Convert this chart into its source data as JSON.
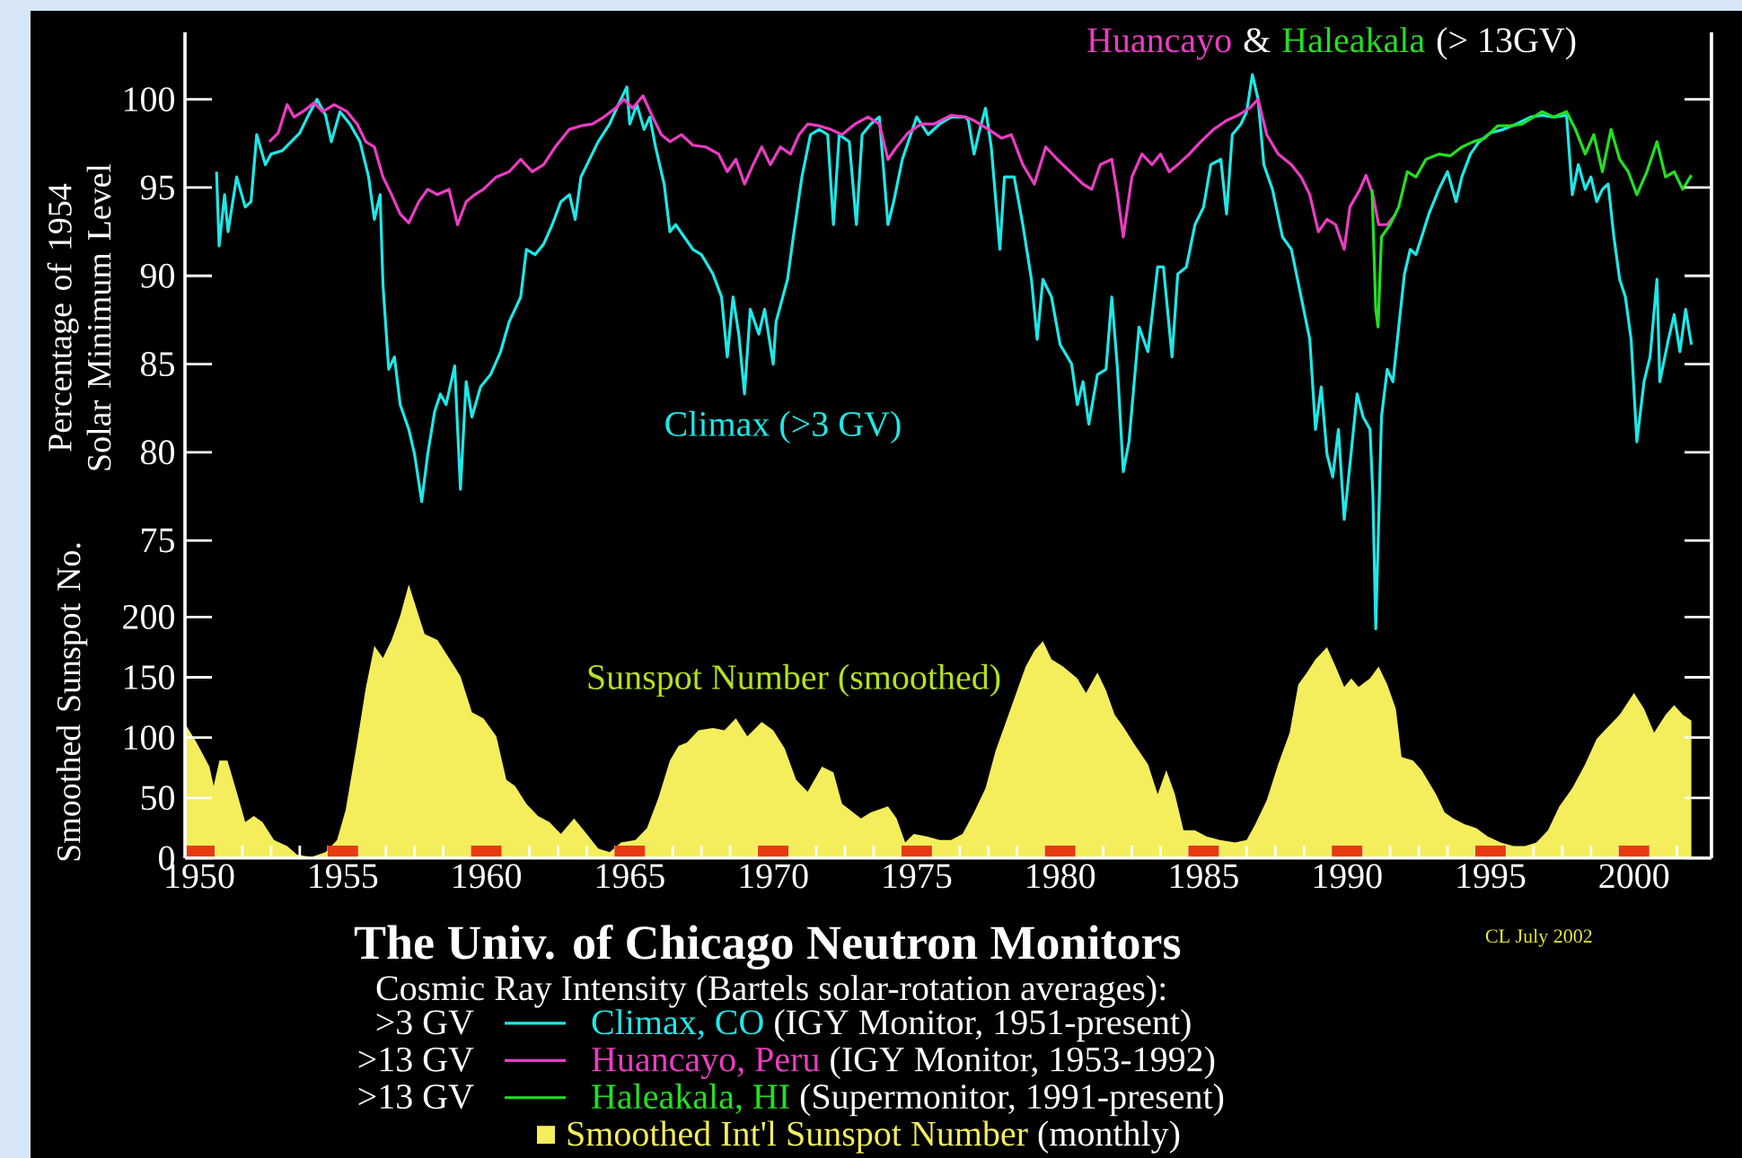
{
  "chart_data": [
    {
      "type": "line",
      "title": "The Univ. of Chicago Neutron Monitors",
      "ylabel": "Percentage of 1954 Solar Minimum Level",
      "legend_title": "Cosmic Ray Intensity (Bartels solar-rotation averages):",
      "legend": "bottom",
      "tick_labels": "y",
      "xlim": [
        1949.5,
        2002.7
      ],
      "ylim": [
        57,
        103.8
      ],
      "yticks": [
        75,
        80,
        85,
        90,
        95,
        100
      ],
      "series": [
        {
          "name": "Climax, CO",
          "color": "#1ee8e8",
          "x": [
            1950.6,
            1950.69,
            1950.88,
            1951.0,
            1951.3,
            1951.6,
            1951.8,
            1952.0,
            1952.3,
            1952.5,
            1952.9,
            1953.2,
            1953.5,
            1953.8,
            1954.1,
            1954.4,
            1954.6,
            1954.9,
            1955.25,
            1955.6,
            1955.9,
            1956.1,
            1956.3,
            1956.4,
            1956.6,
            1956.8,
            1957.0,
            1957.3,
            1957.5,
            1957.75,
            1957.96,
            1958.2,
            1958.4,
            1958.6,
            1958.9,
            1959.1,
            1959.3,
            1959.5,
            1959.8,
            1960.15,
            1960.5,
            1960.8,
            1961.2,
            1961.4,
            1961.7,
            1962.0,
            1962.3,
            1962.6,
            1962.9,
            1963.1,
            1963.3,
            1963.6,
            1963.9,
            1964.3,
            1964.6,
            1964.9,
            1965.0,
            1965.25,
            1965.5,
            1965.7,
            1965.9,
            1966.2,
            1966.4,
            1966.6,
            1966.9,
            1967.2,
            1967.5,
            1967.9,
            1968.2,
            1968.4,
            1968.6,
            1968.8,
            1969.0,
            1969.2,
            1969.5,
            1969.7,
            1970.0,
            1970.1,
            1970.5,
            1970.7,
            1971.0,
            1971.3,
            1971.6,
            1971.9,
            1972.1,
            1972.3,
            1972.65,
            1972.9,
            1973.1,
            1973.4,
            1973.7,
            1974.0,
            1974.2,
            1974.5,
            1975.0,
            1975.4,
            1975.8,
            1976.2,
            1976.7,
            1976.8,
            1977.0,
            1977.2,
            1977.4,
            1977.6,
            1977.9,
            1978.06,
            1978.4,
            1978.7,
            1979.0,
            1979.2,
            1979.4,
            1979.7,
            1980.0,
            1980.4,
            1980.6,
            1980.8,
            1981.0,
            1981.3,
            1981.6,
            1981.8,
            1982.0,
            1982.2,
            1982.4,
            1982.75,
            1983.06,
            1983.4,
            1983.6,
            1983.9,
            1984.1,
            1984.4,
            1984.7,
            1985.0,
            1985.25,
            1985.6,
            1985.8,
            1986.0,
            1986.3,
            1986.5,
            1986.7,
            1986.9,
            1987.1,
            1987.4,
            1987.75,
            1988.06,
            1988.4,
            1988.7,
            1988.9,
            1989.1,
            1989.3,
            1989.5,
            1989.7,
            1989.9,
            1990.1,
            1990.35,
            1990.56,
            1990.8,
            1990.9,
            1991.0,
            1991.2,
            1991.4,
            1991.6,
            1991.8,
            1992.0,
            1992.2,
            1992.4,
            1992.6,
            1992.85,
            1993.2,
            1993.5,
            1993.8,
            1994.0,
            1994.3,
            1994.6,
            1995.0,
            1995.45,
            1995.9,
            1996.4,
            1996.8,
            1997.2,
            1997.65,
            1997.85,
            1998.06,
            1998.3,
            1998.5,
            1998.7,
            1998.9,
            1999.1,
            1999.3,
            1999.5,
            1999.7,
            1999.9,
            2000.1,
            2000.35,
            2000.56,
            2000.8,
            2000.9,
            2001.2,
            2001.4,
            2001.6,
            2001.8,
            2002.0
          ],
          "values": [
            95.9,
            91.7,
            94.6,
            92.5,
            95.6,
            93.9,
            94.2,
            98.0,
            96.3,
            96.9,
            97.1,
            97.6,
            98.1,
            99.1,
            100.0,
            99.1,
            97.6,
            99.3,
            98.6,
            97.6,
            95.6,
            93.2,
            94.6,
            89.5,
            84.7,
            85.4,
            82.7,
            81.3,
            79.9,
            77.2,
            79.9,
            82.3,
            83.3,
            82.7,
            84.9,
            77.9,
            84.0,
            82.0,
            83.7,
            84.4,
            85.7,
            87.4,
            88.8,
            91.5,
            91.2,
            91.8,
            92.9,
            94.2,
            94.6,
            93.2,
            95.6,
            96.6,
            97.6,
            98.6,
            99.7,
            100.7,
            98.6,
            99.7,
            98.3,
            99.0,
            97.3,
            95.2,
            92.5,
            92.9,
            92.2,
            91.5,
            91.2,
            90.1,
            88.8,
            85.4,
            88.8,
            86.7,
            83.3,
            88.1,
            86.7,
            88.1,
            85.0,
            87.4,
            89.8,
            92.2,
            95.6,
            98.0,
            98.3,
            98.0,
            92.9,
            98.0,
            97.6,
            92.9,
            98.0,
            98.6,
            99.0,
            92.9,
            94.2,
            96.6,
            99.0,
            98.0,
            98.6,
            99.0,
            99.0,
            98.8,
            96.9,
            98.3,
            99.5,
            97.3,
            91.5,
            95.6,
            95.6,
            92.9,
            89.8,
            86.4,
            89.8,
            88.8,
            86.1,
            85.0,
            82.7,
            84.0,
            81.6,
            84.4,
            84.7,
            88.8,
            84.7,
            78.9,
            80.6,
            87.1,
            85.7,
            90.5,
            90.5,
            85.4,
            90.1,
            90.5,
            92.9,
            93.9,
            96.3,
            96.6,
            93.5,
            98.0,
            98.6,
            99.3,
            101.4,
            100.0,
            96.3,
            94.9,
            92.2,
            91.5,
            88.8,
            86.4,
            81.3,
            83.7,
            79.9,
            78.6,
            81.3,
            76.2,
            79.3,
            83.3,
            82.0,
            81.3,
            77.6,
            70.0,
            82.0,
            84.7,
            84.0,
            87.1,
            90.1,
            91.5,
            91.2,
            92.2,
            93.5,
            94.9,
            95.9,
            94.2,
            95.6,
            96.9,
            97.6,
            98.1,
            98.3,
            98.6,
            99.0,
            99.1,
            99.0,
            99.1,
            94.6,
            96.3,
            94.9,
            95.6,
            94.2,
            94.9,
            95.2,
            92.2,
            89.8,
            88.8,
            86.4,
            80.6,
            84.0,
            85.4,
            89.8,
            84.0,
            86.4,
            87.8,
            85.7,
            88.1,
            86.1
          ]
        },
        {
          "name": "Huancayo, Peru",
          "color": "#ec3cc4",
          "x": [
            1952.44,
            1952.75,
            1953.06,
            1953.3,
            1953.6,
            1954.0,
            1954.3,
            1954.7,
            1955.15,
            1955.5,
            1955.8,
            1956.1,
            1956.4,
            1956.7,
            1957.0,
            1957.3,
            1957.65,
            1957.96,
            1958.3,
            1958.7,
            1959.0,
            1959.3,
            1959.6,
            1959.9,
            1960.35,
            1960.8,
            1961.2,
            1961.6,
            1962.0,
            1962.4,
            1962.9,
            1963.3,
            1963.7,
            1964.1,
            1964.5,
            1964.8,
            1965.1,
            1965.46,
            1965.8,
            1966.1,
            1966.4,
            1966.8,
            1967.2,
            1967.65,
            1968.1,
            1968.4,
            1968.7,
            1969.0,
            1969.3,
            1969.6,
            1969.9,
            1970.25,
            1970.6,
            1970.9,
            1971.2,
            1971.6,
            1972.0,
            1972.4,
            1972.85,
            1973.3,
            1973.7,
            1974.0,
            1974.3,
            1974.7,
            1975.15,
            1975.6,
            1976.2,
            1976.7,
            1977.0,
            1977.5,
            1977.96,
            1978.3,
            1978.7,
            1979.1,
            1979.5,
            1979.9,
            1980.35,
            1980.8,
            1981.1,
            1981.4,
            1981.8,
            1982.0,
            1982.2,
            1982.5,
            1982.85,
            1983.2,
            1983.5,
            1983.8,
            1984.1,
            1984.5,
            1984.9,
            1985.35,
            1985.8,
            1986.2,
            1986.6,
            1986.9,
            1987.2,
            1987.6,
            1988.06,
            1988.4,
            1988.7,
            1989.0,
            1989.3,
            1989.6,
            1989.9,
            1990.1,
            1990.45,
            1990.66,
            1990.9,
            1991.1,
            1991.4,
            1991.7
          ],
          "values": [
            97.6,
            98.1,
            99.7,
            99.0,
            99.3,
            99.8,
            99.3,
            99.7,
            99.3,
            98.6,
            97.6,
            97.3,
            95.6,
            94.6,
            93.5,
            93.0,
            94.2,
            94.9,
            94.6,
            94.9,
            92.9,
            94.2,
            94.6,
            94.9,
            95.6,
            95.9,
            96.6,
            95.9,
            96.3,
            97.3,
            98.3,
            98.5,
            98.6,
            99.0,
            99.5,
            100.0,
            99.5,
            100.2,
            99.0,
            98.0,
            97.6,
            98.0,
            97.4,
            97.3,
            96.9,
            95.9,
            96.6,
            95.2,
            96.3,
            97.3,
            96.3,
            97.3,
            96.9,
            98.0,
            98.6,
            98.5,
            98.3,
            98.0,
            98.6,
            99.0,
            98.6,
            96.6,
            97.3,
            98.1,
            98.6,
            98.6,
            99.1,
            99.0,
            98.8,
            98.3,
            97.8,
            98.0,
            96.3,
            95.2,
            97.3,
            96.6,
            95.9,
            95.2,
            94.9,
            96.3,
            96.6,
            94.6,
            92.2,
            95.6,
            96.9,
            96.3,
            96.9,
            95.9,
            96.3,
            96.9,
            97.6,
            98.3,
            98.8,
            99.1,
            99.5,
            100.0,
            98.0,
            96.9,
            96.3,
            95.6,
            94.6,
            92.5,
            93.2,
            92.9,
            91.5,
            93.9,
            94.9,
            95.7,
            94.6,
            92.9,
            92.9,
            93.5
          ]
        },
        {
          "name": "Haleakala, HI",
          "color": "#22e022",
          "x": [
            1990.87,
            1991.0,
            1991.08,
            1991.2,
            1991.5,
            1991.8,
            1992.1,
            1992.4,
            1992.75,
            1993.2,
            1993.6,
            1994.0,
            1994.4,
            1994.8,
            1995.25,
            1995.7,
            1996.1,
            1996.5,
            1996.8,
            1997.2,
            1997.65,
            1997.96,
            1998.3,
            1998.6,
            1998.9,
            1999.2,
            1999.5,
            1999.8,
            2000.1,
            2000.45,
            2000.8,
            2001.1,
            2001.4,
            2001.7,
            2002.0
          ],
          "values": [
            94.9,
            88.1,
            87.1,
            92.2,
            92.9,
            93.9,
            95.9,
            95.6,
            96.6,
            96.9,
            96.8,
            97.3,
            97.6,
            97.8,
            98.5,
            98.5,
            98.6,
            99.0,
            99.3,
            99.0,
            99.3,
            98.3,
            96.9,
            98.0,
            95.9,
            98.3,
            96.6,
            95.9,
            94.6,
            95.9,
            97.6,
            95.6,
            95.9,
            94.9,
            95.7
          ]
        }
      ],
      "annotations": [
        "Climax (>3 GV)",
        "Huancayo",
        "&",
        "Haleakala",
        "(> 13GV)",
        ">3 GV",
        ">13 GV",
        ">13 GV",
        "(IGY Monitor, 1951-present)",
        "(IGY Monitor, 1953-1992)",
        "(Supermonitor, 1991-present)",
        "CL July 2002"
      ]
    },
    {
      "type": "area",
      "ylabel": "Smoothed Sunspot No.",
      "legend": "bottom",
      "xlim": [
        1949.5,
        2002.7
      ],
      "ylim": [
        0,
        685
      ],
      "yticks": [
        0,
        50,
        100,
        150,
        200
      ],
      "xticks": [
        1950,
        {
          "value": 1950.5,
          "label": null
        },
        {
          "value": 1951.5,
          "label": null
        },
        {
          "value": 1952.5,
          "label": null
        },
        {
          "value": 1953.5,
          "label": null
        },
        {
          "value": 1954.5,
          "label": null
        },
        1955,
        {
          "value": 1955.5,
          "label": null
        },
        {
          "value": 1956.5,
          "label": null
        },
        {
          "value": 1957.5,
          "label": null
        },
        {
          "value": 1958.5,
          "label": null
        },
        {
          "value": 1959.5,
          "label": null
        },
        1960,
        {
          "value": 1960.5,
          "label": null
        },
        {
          "value": 1961.5,
          "label": null
        },
        {
          "value": 1962.5,
          "label": null
        },
        {
          "value": 1963.5,
          "label": null
        },
        {
          "value": 1964.5,
          "label": null
        },
        1965,
        {
          "value": 1965.5,
          "label": null
        },
        {
          "value": 1966.5,
          "label": null
        },
        {
          "value": 1967.5,
          "label": null
        },
        {
          "value": 1968.5,
          "label": null
        },
        {
          "value": 1969.5,
          "label": null
        },
        1970,
        {
          "value": 1970.5,
          "label": null
        },
        {
          "value": 1971.5,
          "label": null
        },
        {
          "value": 1972.5,
          "label": null
        },
        {
          "value": 1973.5,
          "label": null
        },
        {
          "value": 1974.5,
          "label": null
        },
        1975,
        {
          "value": 1975.5,
          "label": null
        },
        {
          "value": 1976.5,
          "label": null
        },
        {
          "value": 1977.5,
          "label": null
        },
        {
          "value": 1978.5,
          "label": null
        },
        {
          "value": 1979.5,
          "label": null
        },
        1980,
        {
          "value": 1980.5,
          "label": null
        },
        {
          "value": 1981.5,
          "label": null
        },
        {
          "value": 1982.5,
          "label": null
        },
        {
          "value": 1983.5,
          "label": null
        },
        {
          "value": 1984.5,
          "label": null
        },
        1985,
        {
          "value": 1985.5,
          "label": null
        },
        {
          "value": 1986.5,
          "label": null
        },
        {
          "value": 1987.5,
          "label": null
        },
        {
          "value": 1988.5,
          "label": null
        },
        {
          "value": 1989.5,
          "label": null
        },
        1990,
        {
          "value": 1990.5,
          "label": null
        },
        {
          "value": 1991.5,
          "label": null
        },
        {
          "value": 1992.5,
          "label": null
        },
        {
          "value": 1993.5,
          "label": null
        },
        {
          "value": 1994.5,
          "label": null
        },
        1995,
        {
          "value": 1995.5,
          "label": null
        },
        {
          "value": 1996.5,
          "label": null
        },
        {
          "value": 1997.5,
          "label": null
        },
        {
          "value": 1998.5,
          "label": null
        },
        {
          "value": 1999.5,
          "label": null
        },
        2000,
        {
          "value": 2000.5,
          "label": null
        },
        {
          "value": 2001.5,
          "label": null
        }
      ],
      "series": [
        {
          "name": "Smoothed Int'l Sunspot Number",
          "color": "#f4ee5c",
          "x": [
            1949.52,
            1949.9,
            1950.35,
            1950.5,
            1950.7,
            1950.98,
            1951.3,
            1951.6,
            1951.9,
            1952.2,
            1952.6,
            1953.06,
            1953.4,
            1953.9,
            1954.4,
            1954.8,
            1955.1,
            1955.5,
            1955.8,
            1956.1,
            1956.4,
            1956.7,
            1957.0,
            1957.3,
            1957.5,
            1957.85,
            1958.3,
            1958.7,
            1959.1,
            1959.5,
            1959.9,
            1960.35,
            1960.7,
            1961.0,
            1961.4,
            1961.8,
            1962.2,
            1962.6,
            1963.06,
            1963.5,
            1963.9,
            1964.3,
            1964.7,
            1965.2,
            1965.6,
            1966.0,
            1966.4,
            1966.7,
            1967.0,
            1967.4,
            1967.9,
            1968.3,
            1968.7,
            1969.1,
            1969.6,
            1970.0,
            1970.4,
            1970.8,
            1971.2,
            1971.7,
            1972.1,
            1972.4,
            1973.06,
            1973.4,
            1974.0,
            1974.3,
            1974.6,
            1974.9,
            1975.35,
            1975.8,
            1976.2,
            1976.6,
            1977.0,
            1977.4,
            1977.75,
            1978.2,
            1978.5,
            1978.8,
            1979.1,
            1979.4,
            1979.7,
            1980.1,
            1980.6,
            1980.9,
            1981.3,
            1981.6,
            1981.9,
            1982.2,
            1982.6,
            1983.06,
            1983.4,
            1983.7,
            1984.0,
            1984.3,
            1984.7,
            1985.1,
            1985.56,
            1986.1,
            1986.5,
            1986.8,
            1987.2,
            1987.6,
            1988.0,
            1988.3,
            1988.6,
            1988.9,
            1989.3,
            1989.6,
            1989.9,
            1990.15,
            1990.4,
            1990.8,
            1991.1,
            1991.4,
            1991.7,
            1991.9,
            1992.3,
            1992.6,
            1993.1,
            1993.4,
            1993.7,
            1994.1,
            1994.5,
            1994.9,
            1995.35,
            1995.8,
            1996.2,
            1996.6,
            1997.0,
            1997.4,
            1997.85,
            1998.3,
            1998.7,
            1999.1,
            1999.5,
            2000.0,
            2000.35,
            2000.7,
            2001.1,
            2001.4,
            2001.7,
            2002.0
          ],
          "values": [
            111,
            96,
            76,
            60,
            81,
            81,
            55,
            30,
            35,
            30,
            15,
            10,
            3,
            1,
            5,
            15,
            40,
            96,
            141,
            176,
            166,
            181,
            201,
            227,
            212,
            186,
            181,
            166,
            151,
            121,
            116,
            101,
            65,
            60,
            45,
            35,
            30,
            20,
            33,
            20,
            8,
            5,
            13,
            15,
            25,
            50,
            81,
            93,
            96,
            106,
            108,
            106,
            116,
            101,
            113,
            106,
            91,
            65,
            55,
            76,
            71,
            45,
            33,
            38,
            43,
            33,
            13,
            20,
            18,
            15,
            15,
            20,
            38,
            58,
            89,
            119,
            139,
            159,
            172,
            180,
            165,
            159,
            149,
            137,
            154,
            139,
            119,
            109,
            94,
            78,
            53,
            73,
            53,
            23,
            23,
            18,
            15,
            13,
            15,
            28,
            48,
            78,
            104,
            144,
            154,
            165,
            175,
            159,
            142,
            149,
            142,
            149,
            159,
            144,
            124,
            84,
            81,
            73,
            53,
            38,
            33,
            28,
            25,
            18,
            13,
            10,
            10,
            13,
            23,
            43,
            58,
            78,
            99,
            109,
            119,
            137,
            124,
            104,
            119,
            127,
            119,
            114
          ]
        }
      ],
      "annotations": [
        "Sunspot Number (smoothed)",
        "(monthly)"
      ]
    }
  ]
}
